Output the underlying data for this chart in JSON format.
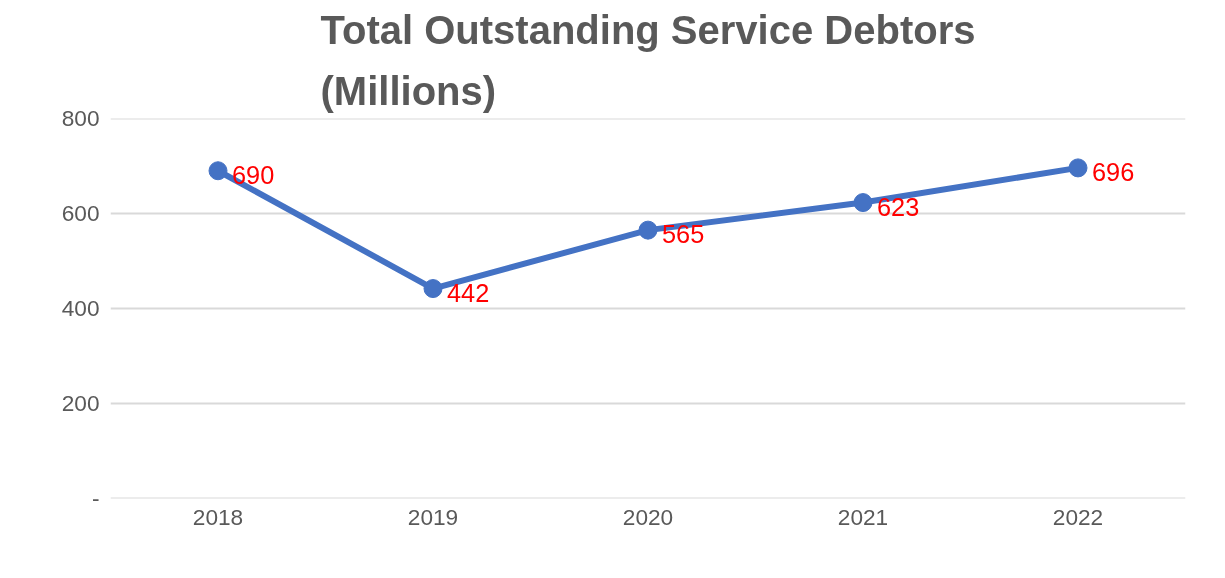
{
  "chart_data": {
    "type": "line",
    "title": "Total Outstanding Service Debtors\n(Millions)",
    "categories": [
      "2018",
      "2019",
      "2020",
      "2021",
      "2022"
    ],
    "series": [
      {
        "color": "#4472c4",
        "values": [
          690,
          442,
          565,
          623,
          696
        ]
      }
    ],
    "ylim": [
      0,
      800
    ],
    "yticks": [
      {
        "value": 0,
        "label": "-"
      },
      200,
      400,
      600,
      800
    ],
    "grid": "y",
    "marker": "circle",
    "data_labels": true
  }
}
